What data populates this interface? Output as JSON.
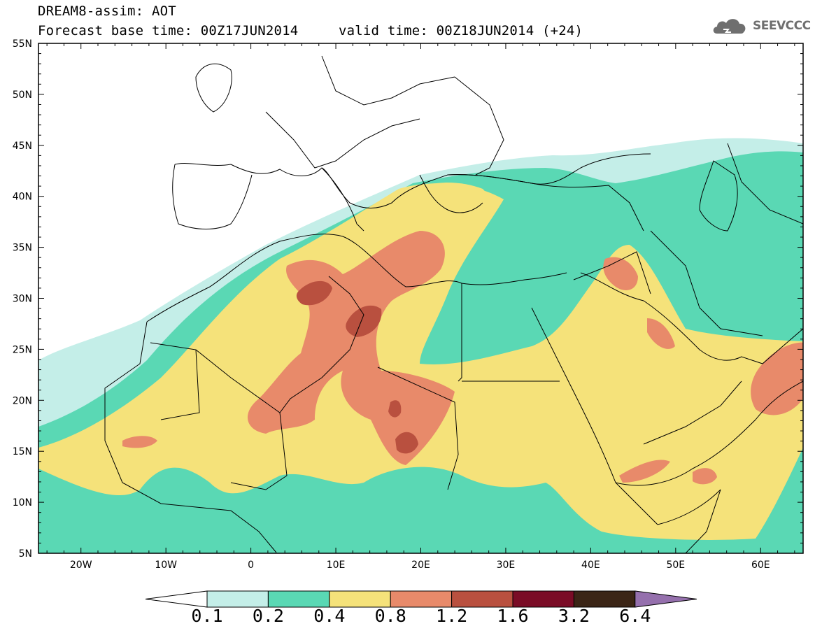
{
  "title": {
    "line1": "DREAM8-assim: AOT",
    "base": "Forecast base time: 00Z17JUN2014",
    "valid": "valid time: 00Z18JUN2014 (+24)"
  },
  "logo": {
    "text": "SEEVCCC",
    "icon": "cloud-icon"
  },
  "colors": {
    "c01": "#c4eee8",
    "c02": "#5ad8b4",
    "c04": "#f5e27a",
    "c08": "#e88a6a",
    "c12": "#b9503f",
    "c16": "#7a0c26",
    "c32": "#3b2516",
    "c64": "#9570ad",
    "border": "#000000"
  },
  "chart_data": {
    "type": "heatmap",
    "variable": "AOT",
    "lon_range": [
      -25,
      65
    ],
    "lat_range": [
      5,
      55
    ],
    "xticks": [
      "20W",
      "10W",
      "0",
      "10E",
      "20E",
      "30E",
      "40E",
      "50E",
      "60E"
    ],
    "yticks": [
      "55N",
      "50N",
      "45N",
      "40N",
      "35N",
      "30N",
      "25N",
      "20N",
      "15N",
      "10N",
      "5N"
    ],
    "colorbar": {
      "levels": [
        "0.1",
        "0.2",
        "0.4",
        "0.8",
        "1.2",
        "1.6",
        "3.2",
        "6.4"
      ],
      "extend": "both"
    }
  }
}
